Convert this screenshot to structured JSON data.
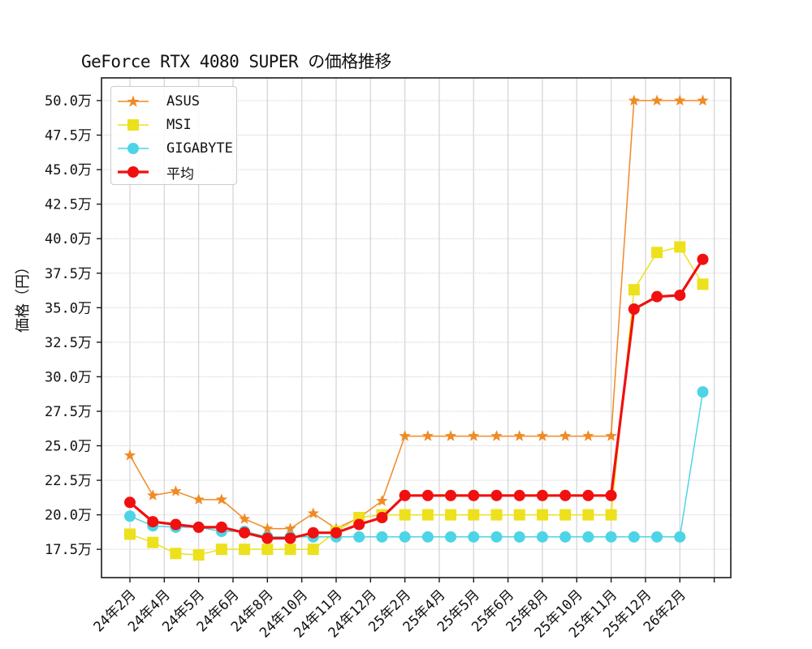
{
  "chart_data": {
    "type": "line",
    "title": "GeForce RTX 4080 SUPER の価格推移",
    "xlabel": "",
    "ylabel": "価格（円）",
    "ylim": [
      15.8,
      51.7
    ],
    "y_unit": "万",
    "y_ticks": [
      "17.5万",
      "20.0万",
      "22.5万",
      "25.0万",
      "27.5万",
      "30.0万",
      "32.5万",
      "35.0万",
      "37.5万",
      "40.0万",
      "42.5万",
      "45.0万",
      "47.5万",
      "50.0万"
    ],
    "y_tick_values": [
      17.5,
      20.0,
      22.5,
      25.0,
      27.5,
      30.0,
      32.5,
      35.0,
      37.5,
      40.0,
      42.5,
      45.0,
      47.5,
      50.0
    ],
    "x_tick_labels": [
      "24年2月",
      "24年4月",
      "24年5月",
      "24年6月",
      "24年8月",
      "24年10月",
      "24年11月",
      "24年12月",
      "25年2月",
      "25年4月",
      "25年5月",
      "25年6月",
      "25年8月",
      "25年10月",
      "25年11月",
      "25年12月",
      "26年2月",
      ""
    ],
    "x_tick_positions": [
      0,
      1.5,
      3,
      4.5,
      6,
      7.5,
      9,
      10.5,
      12,
      13.5,
      15,
      16.5,
      18,
      19.5,
      21,
      22.5,
      24,
      25.5
    ],
    "grid": true,
    "legend_position": "upper left",
    "x": [
      0,
      1,
      2,
      3,
      4,
      5,
      6,
      7,
      8,
      9,
      10,
      11,
      12,
      13,
      14,
      15,
      16,
      17,
      18,
      19,
      20,
      21,
      22,
      23,
      24,
      25
    ],
    "series": [
      {
        "name": "ASUS",
        "color": "#f08a24",
        "marker": "star",
        "linewidth": 1.5,
        "values": [
          24.3,
          21.4,
          21.7,
          21.1,
          21.1,
          19.7,
          19.0,
          19.0,
          20.1,
          19.0,
          19.8,
          21.0,
          25.7,
          25.7,
          25.7,
          25.7,
          25.7,
          25.7,
          25.7,
          25.7,
          25.7,
          25.7,
          50.0,
          50.0,
          50.0,
          50.0
        ]
      },
      {
        "name": "MSI",
        "color": "#ece11c",
        "marker": "square",
        "linewidth": 1.5,
        "values": [
          18.6,
          18.0,
          17.2,
          17.1,
          17.5,
          17.5,
          17.5,
          17.5,
          17.5,
          18.8,
          19.8,
          20.0,
          20.0,
          20.0,
          20.0,
          20.0,
          20.0,
          20.0,
          20.0,
          20.0,
          20.0,
          20.0,
          36.3,
          39.0,
          39.4,
          36.7
        ]
      },
      {
        "name": "GIGABYTE",
        "color": "#4dd4e6",
        "marker": "circle",
        "linewidth": 1.5,
        "values": [
          19.9,
          19.2,
          19.1,
          19.1,
          18.8,
          18.8,
          18.4,
          18.4,
          18.4,
          18.4,
          18.4,
          18.4,
          18.4,
          18.4,
          18.4,
          18.4,
          18.4,
          18.4,
          18.4,
          18.4,
          18.4,
          18.4,
          18.4,
          18.4,
          18.4,
          28.9
        ]
      },
      {
        "name": "平均",
        "color": "#f01010",
        "marker": "circle",
        "linewidth": 3.2,
        "values": [
          20.9,
          19.5,
          19.3,
          19.1,
          19.1,
          18.7,
          18.3,
          18.3,
          18.7,
          18.7,
          19.3,
          19.8,
          21.4,
          21.4,
          21.4,
          21.4,
          21.4,
          21.4,
          21.4,
          21.4,
          21.4,
          21.4,
          34.9,
          35.8,
          35.9,
          38.5
        ]
      }
    ]
  },
  "title": "GeForce RTX 4080 SUPER の価格推移",
  "ylabel": "価格（円）",
  "legend": {
    "items": [
      {
        "label": "ASUS"
      },
      {
        "label": "MSI"
      },
      {
        "label": "GIGABYTE"
      },
      {
        "label": "平均"
      }
    ]
  }
}
